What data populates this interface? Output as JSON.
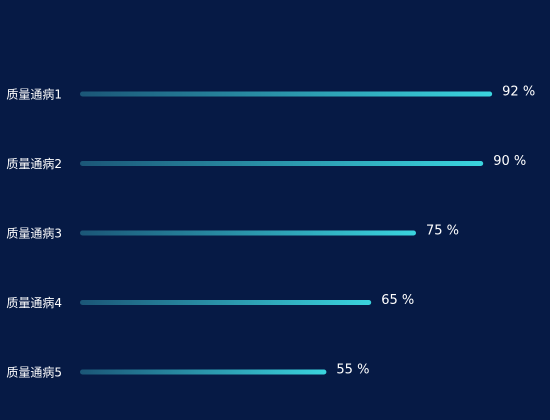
{
  "chart_data": {
    "type": "hbar",
    "categories": [
      "质量通病1",
      "质量通病2",
      "质量通病3",
      "质量通病4",
      "质量通病5"
    ],
    "values": [
      92,
      90,
      75,
      65,
      55
    ],
    "value_labels": [
      "92 %",
      "90 %",
      "75 %",
      "65 %",
      "55 %"
    ],
    "xlim": [
      0,
      100
    ],
    "colors": [
      "#1b5677",
      "#3ad4de"
    ]
  }
}
